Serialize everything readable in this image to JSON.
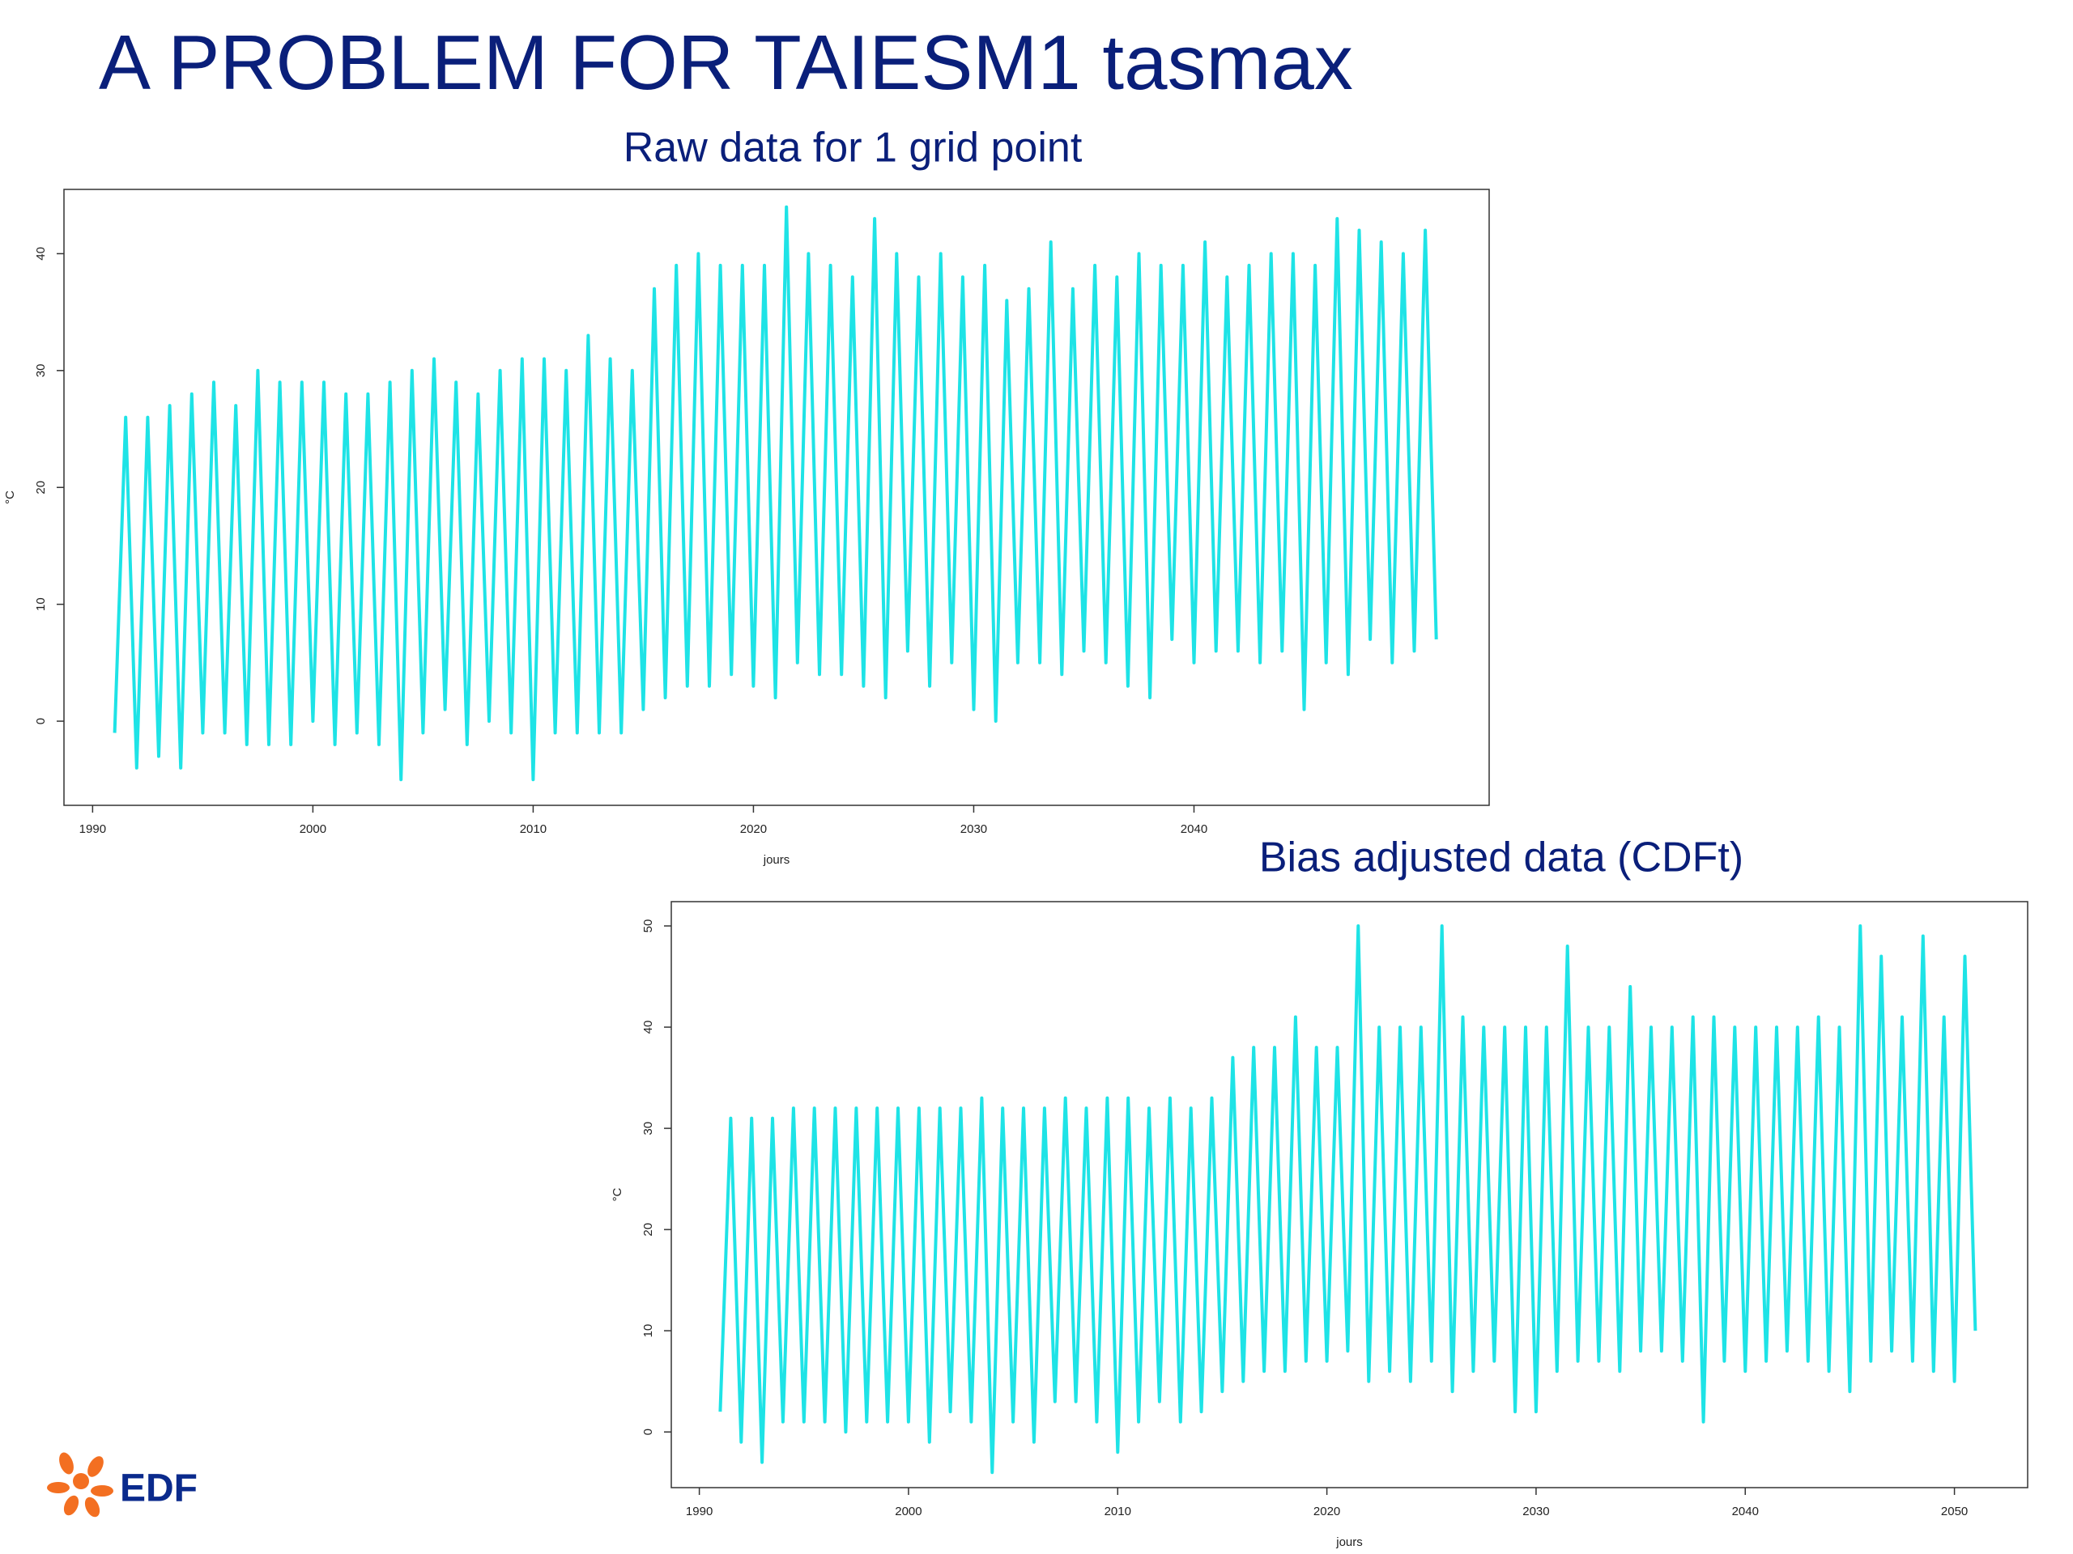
{
  "title": "A PROBLEM FOR TAIESM1 tasmax",
  "logo": "EDF",
  "chart_data": [
    {
      "type": "line",
      "title": "Raw data for 1 grid point",
      "x_label": "jours",
      "y_label": "°C",
      "xlim": [
        1988.7,
        2053.4
      ],
      "ylim": [
        -7.2,
        45.5
      ],
      "xticks": [
        1990,
        2000,
        2010,
        2020,
        2030,
        2040
      ],
      "yticks": [
        0,
        10,
        20,
        30,
        40
      ],
      "color": "#1ee3e6",
      "x": [
        1991,
        1991.5,
        1992,
        1992.5,
        1993,
        1993.5,
        1994,
        1994.5,
        1995,
        1995.5,
        1996,
        1996.5,
        1997,
        1997.5,
        1998,
        1998.5,
        1999,
        1999.5,
        2000,
        2000.5,
        2001,
        2001.5,
        2002,
        2002.5,
        2003,
        2003.5,
        2004,
        2004.5,
        2005,
        2005.5,
        2006,
        2006.5,
        2007,
        2007.5,
        2008,
        2008.5,
        2009,
        2009.5,
        2010,
        2010.5,
        2011,
        2011.5,
        2012,
        2012.5,
        2013,
        2013.5,
        2014,
        2014.5,
        2015,
        2015.5,
        2016,
        2016.5,
        2017,
        2017.5,
        2018,
        2018.5,
        2019,
        2019.5,
        2020,
        2020.5,
        2021,
        2021.5,
        2022,
        2022.5,
        2023,
        2023.5,
        2024,
        2024.5,
        2025,
        2025.5,
        2026,
        2026.5,
        2027,
        2027.5,
        2028,
        2028.5,
        2029,
        2029.5,
        2030,
        2030.5,
        2031,
        2031.5,
        2032,
        2032.5,
        2033,
        2033.5,
        2034,
        2034.5,
        2035,
        2035.5,
        2036,
        2036.5,
        2037,
        2037.5,
        2038,
        2038.5,
        2039,
        2039.5,
        2040,
        2040.5,
        2041,
        2041.5,
        2042,
        2042.5,
        2043,
        2043.5,
        2044,
        2044.5,
        2045,
        2045.5,
        2046,
        2046.5,
        2047,
        2047.5,
        2048,
        2048.5,
        2049,
        2049.5,
        2050,
        2050.5,
        2051
      ],
      "values": [
        -1,
        26,
        -4,
        26,
        -3,
        27,
        -4,
        28,
        -1,
        29,
        -1,
        27,
        -2,
        30,
        -2,
        29,
        -2,
        29,
        0,
        29,
        -2,
        28,
        -1,
        28,
        -2,
        29,
        -5,
        30,
        -1,
        31,
        1,
        29,
        -2,
        28,
        0,
        30,
        -1,
        31,
        -5,
        31,
        -1,
        30,
        -1,
        33,
        -1,
        31,
        -1,
        30,
        1,
        37,
        2,
        39,
        3,
        40,
        3,
        39,
        4,
        39,
        3,
        39,
        2,
        44,
        5,
        40,
        4,
        39,
        4,
        38,
        3,
        43,
        2,
        40,
        6,
        38,
        3,
        40,
        5,
        38,
        1,
        39,
        0,
        36,
        5,
        37,
        5,
        41,
        4,
        37,
        6,
        39,
        5,
        38,
        3,
        40,
        2,
        39,
        7,
        39,
        5,
        41,
        6,
        38,
        6,
        39,
        5,
        40,
        6,
        40,
        1,
        39,
        5,
        43,
        4,
        42,
        7,
        41,
        5,
        40,
        6,
        42,
        7
      ]
    },
    {
      "type": "line",
      "title": "Bias adjusted data (CDFt)",
      "x_label": "jours",
      "y_label": "°C",
      "xlim": [
        1988.66,
        2053.5
      ],
      "ylim": [
        -5.5,
        52.4
      ],
      "xticks": [
        1990,
        2000,
        2010,
        2020,
        2030,
        2040,
        2050
      ],
      "yticks": [
        0,
        10,
        20,
        30,
        40,
        50
      ],
      "color": "#1ee3e6",
      "x": [
        1991,
        1991.5,
        1992,
        1992.5,
        1993,
        1993.5,
        1994,
        1994.5,
        1995,
        1995.5,
        1996,
        1996.5,
        1997,
        1997.5,
        1998,
        1998.5,
        1999,
        1999.5,
        2000,
        2000.5,
        2001,
        2001.5,
        2002,
        2002.5,
        2003,
        2003.5,
        2004,
        2004.5,
        2005,
        2005.5,
        2006,
        2006.5,
        2007,
        2007.5,
        2008,
        2008.5,
        2009,
        2009.5,
        2010,
        2010.5,
        2011,
        2011.5,
        2012,
        2012.5,
        2013,
        2013.5,
        2014,
        2014.5,
        2015,
        2015.5,
        2016,
        2016.5,
        2017,
        2017.5,
        2018,
        2018.5,
        2019,
        2019.5,
        2020,
        2020.5,
        2021,
        2021.5,
        2022,
        2022.5,
        2023,
        2023.5,
        2024,
        2024.5,
        2025,
        2025.5,
        2026,
        2026.5,
        2027,
        2027.5,
        2028,
        2028.5,
        2029,
        2029.5,
        2030,
        2030.5,
        2031,
        2031.5,
        2032,
        2032.5,
        2033,
        2033.5,
        2034,
        2034.5,
        2035,
        2035.5,
        2036,
        2036.5,
        2037,
        2037.5,
        2038,
        2038.5,
        2039,
        2039.5,
        2040,
        2040.5,
        2041,
        2041.5,
        2042,
        2042.5,
        2043,
        2043.5,
        2044,
        2044.5,
        2045,
        2045.5,
        2046,
        2046.5,
        2047,
        2047.5,
        2048,
        2048.5,
        2049,
        2049.5,
        2050,
        2050.5,
        2051
      ],
      "values": [
        2,
        31,
        -1,
        31,
        -3,
        31,
        1,
        32,
        1,
        32,
        1,
        32,
        0,
        32,
        1,
        32,
        1,
        32,
        1,
        32,
        -1,
        32,
        2,
        32,
        1,
        33,
        -4,
        32,
        1,
        32,
        -1,
        32,
        3,
        33,
        3,
        32,
        1,
        33,
        -2,
        33,
        1,
        32,
        3,
        33,
        1,
        32,
        2,
        33,
        4,
        37,
        5,
        38,
        6,
        38,
        6,
        41,
        7,
        38,
        7,
        38,
        8,
        50,
        5,
        40,
        6,
        40,
        5,
        40,
        7,
        50,
        4,
        41,
        6,
        40,
        7,
        40,
        2,
        40,
        2,
        40,
        6,
        48,
        7,
        40,
        7,
        40,
        6,
        44,
        8,
        40,
        8,
        40,
        7,
        41,
        1,
        41,
        7,
        40,
        6,
        40,
        7,
        40,
        8,
        40,
        7,
        41,
        6,
        40,
        4,
        50,
        7,
        47,
        8,
        41,
        7,
        49,
        6,
        41,
        5,
        47,
        10
      ]
    }
  ]
}
